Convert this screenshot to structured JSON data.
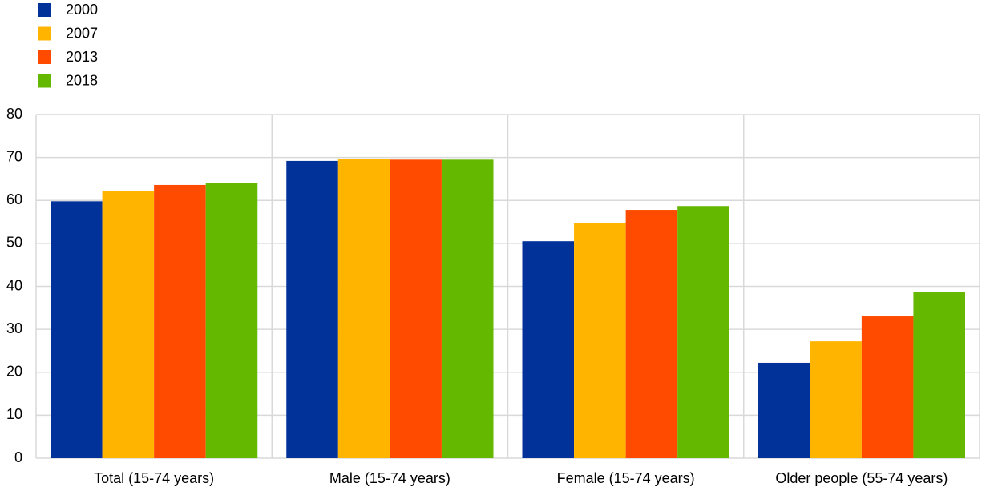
{
  "chart_data": {
    "type": "bar",
    "categories": [
      "Total (15-74 years)",
      "Male (15-74 years)",
      "Female (15-74 years)",
      "Older people (55-74 years)"
    ],
    "series": [
      {
        "name": "2000",
        "color": "#003299",
        "values": [
          59.8,
          69.2,
          50.5,
          22.2
        ]
      },
      {
        "name": "2007",
        "color": "#ffb400",
        "values": [
          62.1,
          69.7,
          54.8,
          27.2
        ]
      },
      {
        "name": "2013",
        "color": "#ff4b00",
        "values": [
          63.6,
          69.5,
          57.8,
          33.0
        ]
      },
      {
        "name": "2018",
        "color": "#65b800",
        "values": [
          64.1,
          69.5,
          58.7,
          38.6
        ]
      }
    ],
    "ylim": [
      0,
      80
    ],
    "yticks": [
      0,
      10,
      20,
      30,
      40,
      50,
      60,
      70,
      80
    ],
    "grid": true,
    "legend": "top-left"
  }
}
